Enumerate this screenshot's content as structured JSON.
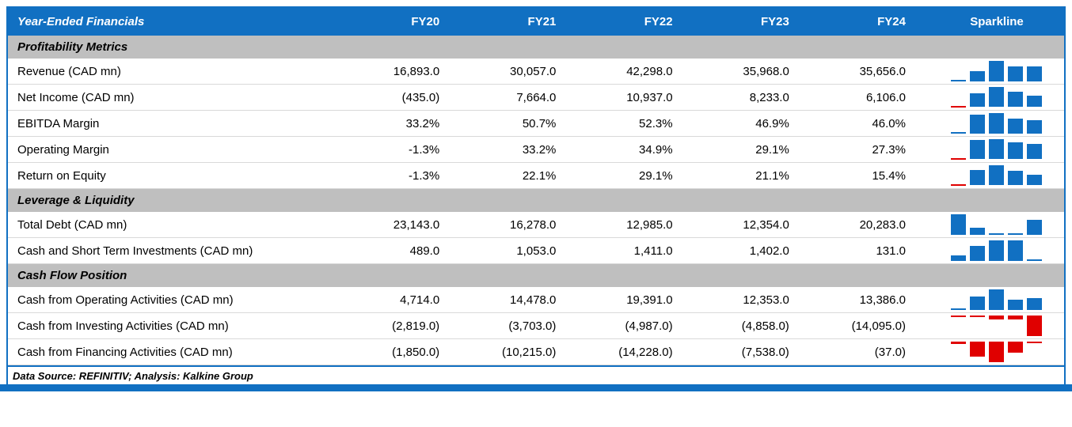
{
  "colors": {
    "primary_blue": "#1170c2",
    "negative_red": "#e00000",
    "section_gray": "#bfbfbf"
  },
  "header": {
    "title": "Year-Ended Financials",
    "columns": [
      "FY20",
      "FY21",
      "FY22",
      "FY23",
      "FY24"
    ],
    "sparkline_label": "Sparkline"
  },
  "sections": [
    {
      "title": "Profitability Metrics",
      "rows": [
        {
          "label": "Revenue (CAD mn)",
          "cells": [
            "16,893.0",
            "30,057.0",
            "42,298.0",
            "35,968.0",
            "35,656.0"
          ]
        },
        {
          "label": "Net Income (CAD mn)",
          "cells": [
            "(435.0)",
            "7,664.0",
            "10,937.0",
            "8,233.0",
            "6,106.0"
          ]
        },
        {
          "label": "EBITDA Margin",
          "cells": [
            "33.2%",
            "50.7%",
            "52.3%",
            "46.9%",
            "46.0%"
          ]
        },
        {
          "label": "Operating Margin",
          "cells": [
            "-1.3%",
            "33.2%",
            "34.9%",
            "29.1%",
            "27.3%"
          ]
        },
        {
          "label": "Return on Equity",
          "cells": [
            "-1.3%",
            "22.1%",
            "29.1%",
            "21.1%",
            "15.4%"
          ]
        }
      ]
    },
    {
      "title": "Leverage & Liquidity",
      "rows": [
        {
          "label": "Total Debt (CAD mn)",
          "cells": [
            "23,143.0",
            "16,278.0",
            "12,985.0",
            "12,354.0",
            "20,283.0"
          ]
        },
        {
          "label": "Cash and Short Term Investments (CAD mn)",
          "cells": [
            "489.0",
            "1,053.0",
            "1,411.0",
            "1,402.0",
            "131.0"
          ]
        }
      ]
    },
    {
      "title": "Cash Flow Position",
      "rows": [
        {
          "label": "Cash from Operating Activities (CAD mn)",
          "cells": [
            "4,714.0",
            "14,478.0",
            "19,391.0",
            "12,353.0",
            "13,386.0"
          ]
        },
        {
          "label": "Cash from Investing Activities (CAD mn)",
          "cells": [
            "(2,819.0)",
            "(3,703.0)",
            "(4,987.0)",
            "(4,858.0)",
            "(14,095.0)"
          ]
        },
        {
          "label": "Cash from Financing Activities (CAD mn)",
          "cells": [
            "(1,850.0)",
            "(10,215.0)",
            "(14,228.0)",
            "(7,538.0)",
            "(37.0)"
          ]
        }
      ]
    }
  ],
  "footer": {
    "text": "Data Source: REFINITIV; Analysis: Kalkine Group"
  },
  "chart_data": {
    "type": "table",
    "title": "Year-Ended Financials",
    "columns": [
      "FY20",
      "FY21",
      "FY22",
      "FY23",
      "FY24"
    ],
    "sparkline_style": "column, positive bars blue, negative bars red, scaled per row min-max",
    "rows": [
      {
        "label": "Revenue (CAD mn)",
        "values": [
          16893.0,
          30057.0,
          42298.0,
          35968.0,
          35656.0
        ]
      },
      {
        "label": "Net Income (CAD mn)",
        "values": [
          -435.0,
          7664.0,
          10937.0,
          8233.0,
          6106.0
        ]
      },
      {
        "label": "EBITDA Margin (%)",
        "values": [
          33.2,
          50.7,
          52.3,
          46.9,
          46.0
        ]
      },
      {
        "label": "Operating Margin (%)",
        "values": [
          -1.3,
          33.2,
          34.9,
          29.1,
          27.3
        ]
      },
      {
        "label": "Return on Equity (%)",
        "values": [
          -1.3,
          22.1,
          29.1,
          21.1,
          15.4
        ]
      },
      {
        "label": "Total Debt (CAD mn)",
        "values": [
          23143.0,
          16278.0,
          12985.0,
          12354.0,
          20283.0
        ]
      },
      {
        "label": "Cash and Short Term Investments (CAD mn)",
        "values": [
          489.0,
          1053.0,
          1411.0,
          1402.0,
          131.0
        ]
      },
      {
        "label": "Cash from Operating Activities (CAD mn)",
        "values": [
          4714.0,
          14478.0,
          19391.0,
          12353.0,
          13386.0
        ]
      },
      {
        "label": "Cash from Investing Activities (CAD mn)",
        "values": [
          -2819.0,
          -3703.0,
          -4987.0,
          -4858.0,
          -14095.0
        ]
      },
      {
        "label": "Cash from Financing Activities (CAD mn)",
        "values": [
          -1850.0,
          -10215.0,
          -14228.0,
          -7538.0,
          -37.0
        ]
      }
    ]
  }
}
